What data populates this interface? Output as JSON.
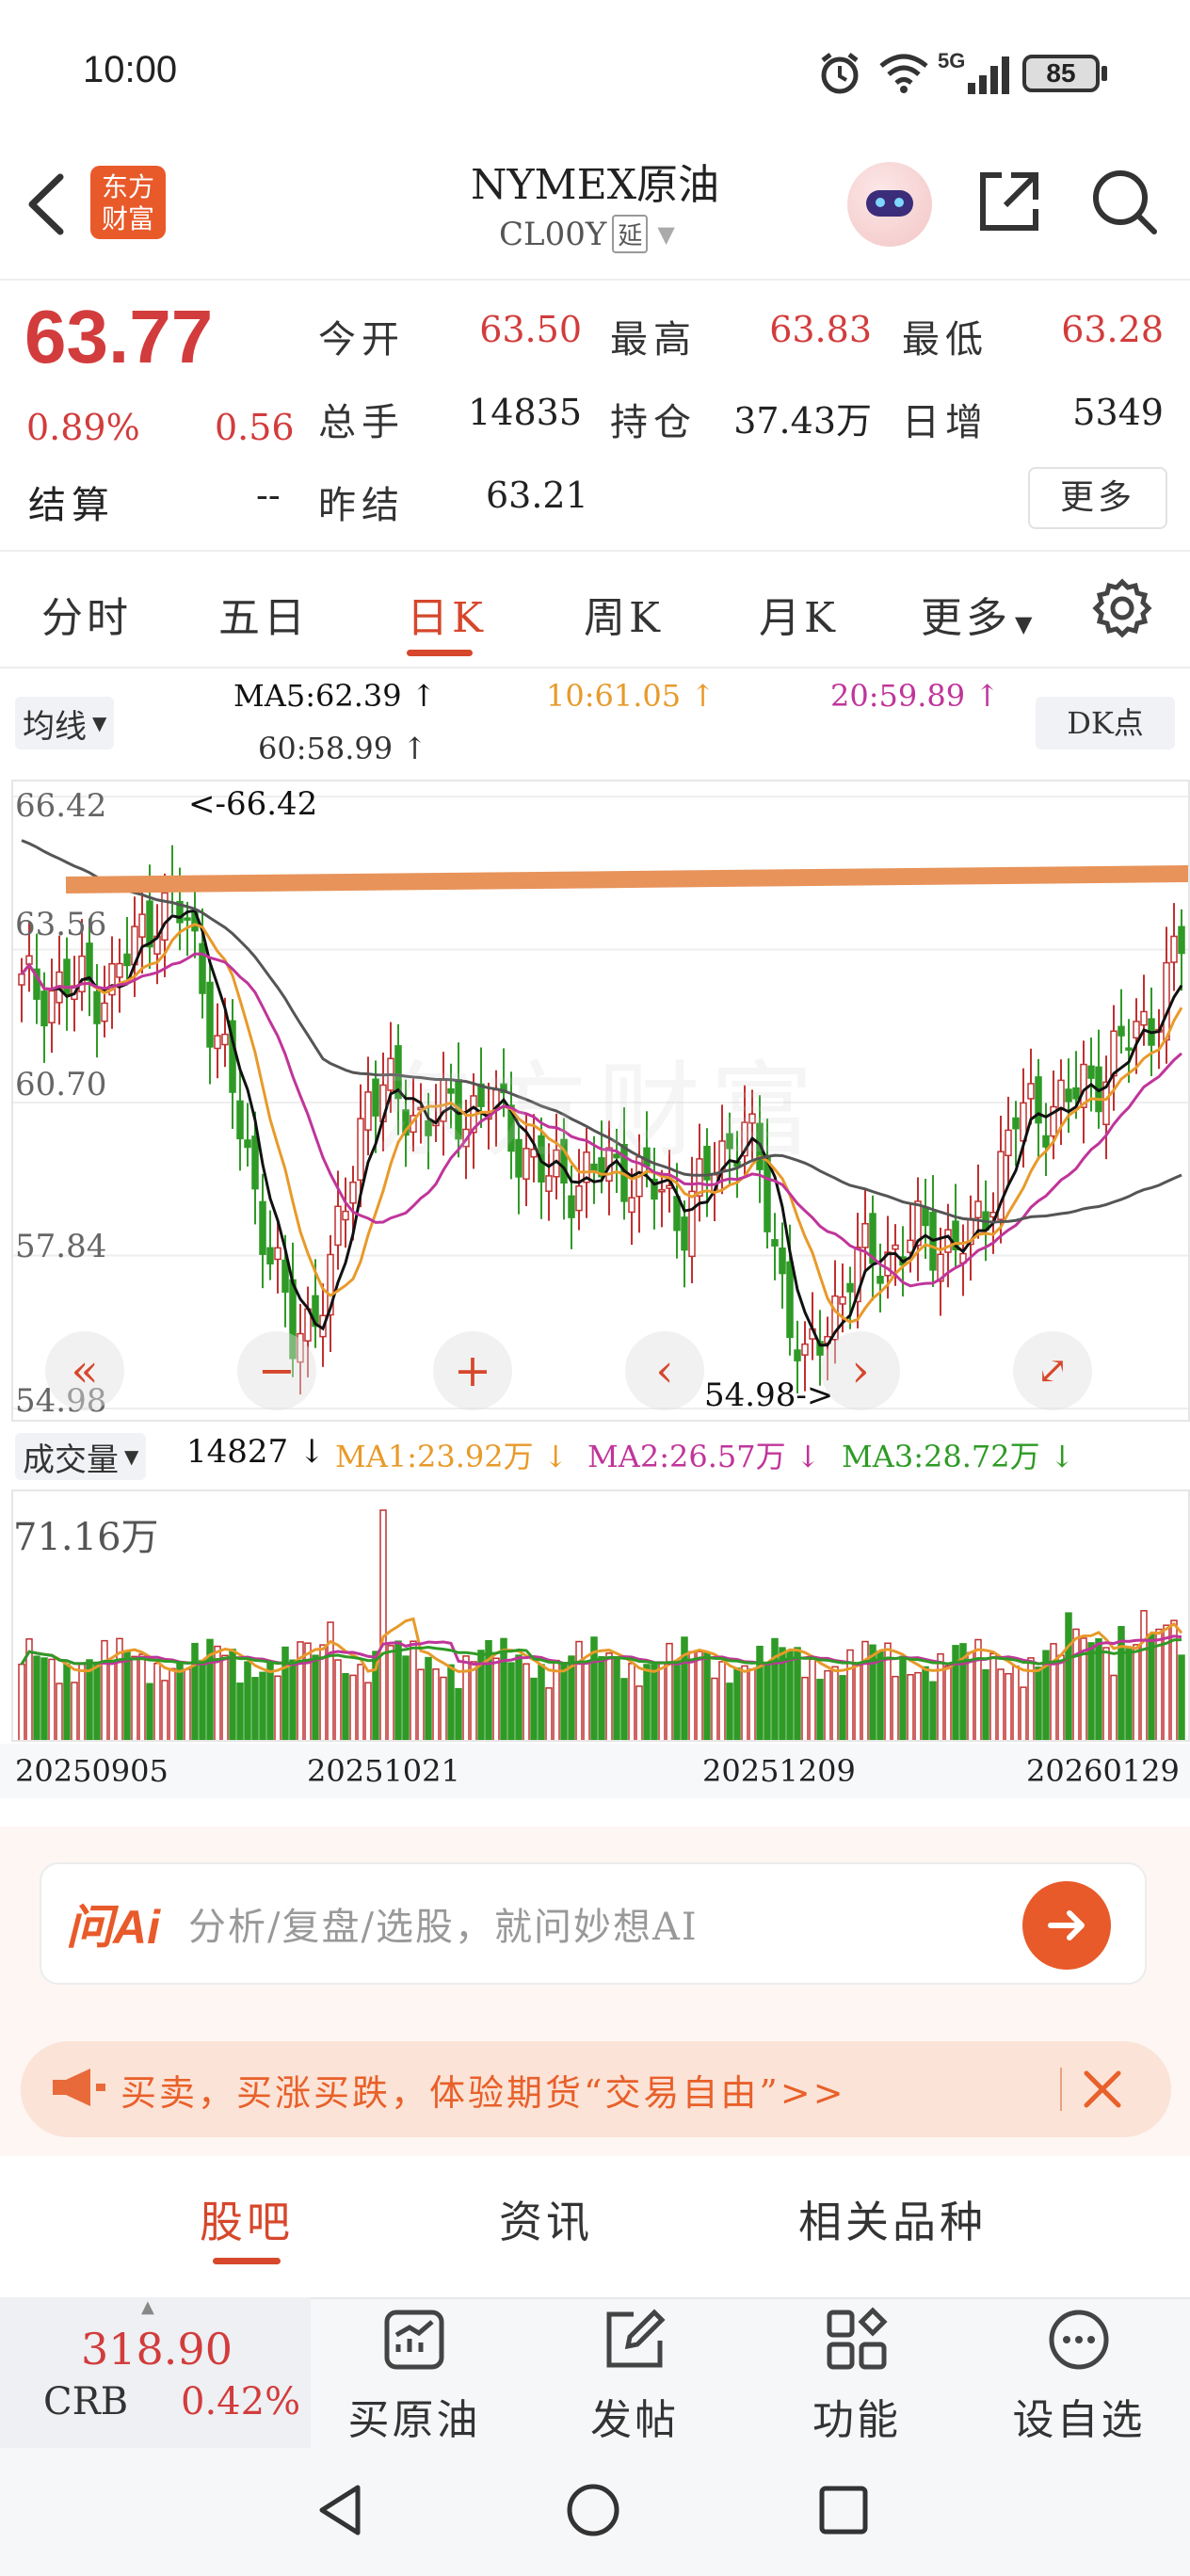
{
  "status": {
    "time": "10:00",
    "network": "5G",
    "battery": "85"
  },
  "header": {
    "title": "NYMEX原油",
    "code": "CL00Y",
    "delay_badge": "延",
    "logo_line1": "东方",
    "logo_line2": "财富"
  },
  "quote": {
    "price": "63.77",
    "change_pct": "0.89%",
    "change": "0.56",
    "open_label": "今开",
    "open": "63.50",
    "high_label": "最高",
    "high": "63.83",
    "low_label": "最低",
    "low": "63.28",
    "volume_label": "总手",
    "volume": "14835",
    "oi_label": "持仓",
    "oi": "37.43万",
    "daily_inc_label": "日增",
    "daily_inc": "5349",
    "settle_label": "结算",
    "settle": "--",
    "prev_settle_label": "昨结",
    "prev_settle": "63.21",
    "more_label": "更多"
  },
  "tabs": {
    "t1": "分时",
    "t2": "五日",
    "t3": "日K",
    "t4": "周K",
    "t5": "月K",
    "t6": "更多"
  },
  "indicators": {
    "ma_select": "均线",
    "ma5": "MA5:62.39",
    "ma10": "10:61.05",
    "ma20": "20:59.89",
    "ma60": "60:58.99",
    "dk_button": "DK点",
    "colors": {
      "ma5": "#111111",
      "ma10": "#e89a2a",
      "ma20": "#c0359a",
      "ma60": "#555555",
      "up": "#c03030",
      "down": "#2f9a26",
      "trendline": "#e8935a"
    }
  },
  "chart": {
    "y_labels": [
      "66.42",
      "63.56",
      "60.70",
      "57.84",
      "54.98"
    ],
    "max_marker": "<-66.42",
    "min_marker": "54.98->",
    "watermark": "东方财富"
  },
  "volume": {
    "select": "成交量",
    "current": "14827",
    "ma1": "MA1:23.92万",
    "ma2": "MA2:26.57万",
    "ma3": "MA3:28.72万",
    "max_label": "71.16万",
    "dates": [
      "20250905",
      "20251021",
      "20251209",
      "20260129"
    ]
  },
  "chart_data": {
    "type": "candlestick",
    "ylim": [
      54.98,
      66.42
    ],
    "x_ticks": [
      "20250905",
      "20251021",
      "20251209",
      "20260129"
    ],
    "moving_averages": {
      "MA5": 62.39,
      "MA10": 61.05,
      "MA20": 59.89,
      "MA60": 58.99
    },
    "period_high": 66.42,
    "period_low": 54.98,
    "volume_max": "71.16万",
    "volume_ma": {
      "MA1": "23.92万",
      "MA2": "26.57万",
      "MA3": "28.72万"
    }
  },
  "ai": {
    "logo": "问Ai",
    "placeholder": "分析/复盘/选股，就问妙想AI"
  },
  "banner": {
    "text": "买卖，买涨买跌，体验期货“交易自由”>>"
  },
  "subtabs": {
    "s1": "股吧",
    "s2": "资讯",
    "s3": "相关品种"
  },
  "bottom": {
    "index_value": "318.90",
    "index_name": "CRB",
    "index_pct": "0.42%",
    "b1": "买原油",
    "b2": "发帖",
    "b3": "功能",
    "b4": "设自选"
  }
}
